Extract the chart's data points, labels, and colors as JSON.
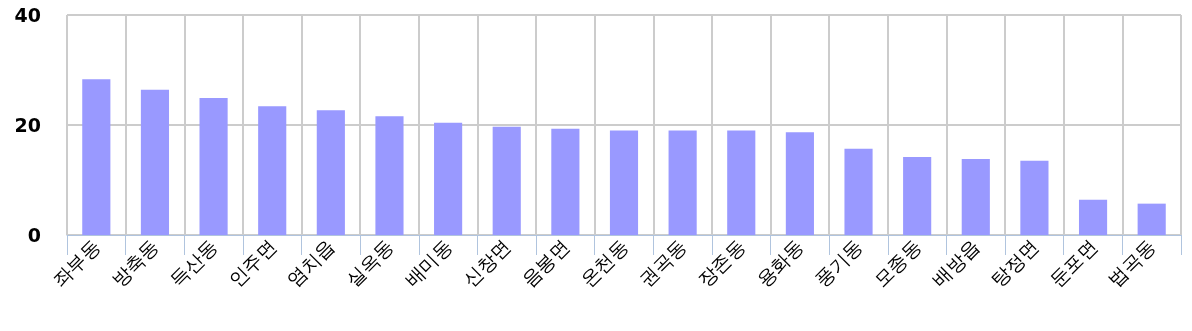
{
  "chart_data": {
    "type": "bar",
    "categories": [
      "좌부동",
      "방축동",
      "득산동",
      "인주면",
      "염치읍",
      "실옥동",
      "배미동",
      "신창면",
      "음봉면",
      "온천동",
      "권곡동",
      "장존동",
      "용화동",
      "풍기동",
      "모종동",
      "배방읍",
      "탕정면",
      "둔포면",
      "법곡동"
    ],
    "values": [
      28.3,
      26.4,
      24.9,
      23.4,
      22.7,
      21.6,
      20.4,
      19.7,
      19.3,
      19.0,
      19.0,
      19.0,
      18.7,
      15.7,
      14.2,
      13.8,
      13.5,
      6.4,
      5.7
    ],
    "color": "#9999ff",
    "ylim": [
      0,
      40
    ],
    "yticks": [
      0,
      20,
      40
    ],
    "grid": true
  }
}
